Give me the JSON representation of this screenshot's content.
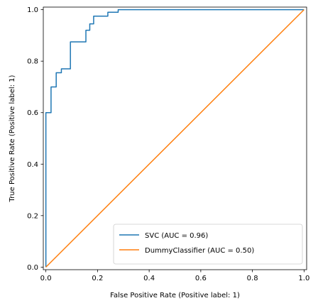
{
  "chart_data": {
    "type": "line",
    "xlabel": "False Positive Rate (Positive label: 1)",
    "ylabel": "True Positive Rate (Positive label: 1)",
    "xlim": [
      -0.01,
      1.01
    ],
    "ylim": [
      -0.01,
      1.01
    ],
    "xticks": [
      0.0,
      0.2,
      0.4,
      0.6,
      0.8,
      1.0
    ],
    "xtick_labels": [
      "0.0",
      "0.2",
      "0.4",
      "0.6",
      "0.8",
      "1.0"
    ],
    "yticks": [
      0.0,
      0.2,
      0.4,
      0.6,
      0.8,
      1.0
    ],
    "ytick_labels": [
      "0.0",
      "0.2",
      "0.4",
      "0.6",
      "0.8",
      "1.0"
    ],
    "grid": false,
    "legend_position": "bottom-right",
    "series": [
      {
        "name": "SVC (AUC = 0.96)",
        "color": "#1f77b4",
        "x": [
          0.0,
          0.0,
          0.0,
          0.02,
          0.02,
          0.04,
          0.04,
          0.06,
          0.06,
          0.095,
          0.095,
          0.155,
          0.155,
          0.17,
          0.17,
          0.185,
          0.185,
          0.24,
          0.24,
          0.28,
          0.28,
          1.0
        ],
        "y": [
          0.0,
          0.6,
          0.6,
          0.6,
          0.7,
          0.7,
          0.755,
          0.755,
          0.77,
          0.77,
          0.875,
          0.875,
          0.92,
          0.92,
          0.945,
          0.945,
          0.975,
          0.975,
          0.99,
          0.99,
          1.0,
          1.0
        ]
      },
      {
        "name": "DummyClassifier (AUC = 0.50)",
        "color": "#ff7f0e",
        "x": [
          0.0,
          1.0
        ],
        "y": [
          0.0,
          1.0
        ]
      }
    ]
  }
}
